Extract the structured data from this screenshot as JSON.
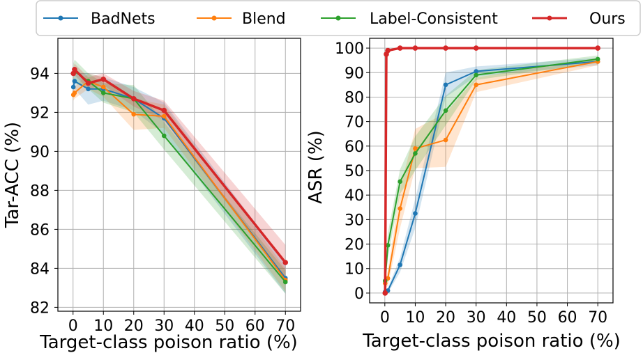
{
  "legend": [
    {
      "name": "BadNets",
      "color": "#1f77b4"
    },
    {
      "name": "Blend",
      "color": "#ff7f0e"
    },
    {
      "name": "Label-Consistent",
      "color": "#2ca02c"
    },
    {
      "name": "Ours",
      "color": "#d62728"
    }
  ],
  "chart_data": [
    {
      "type": "line",
      "xlabel": "Target-class poison ratio (%)",
      "ylabel": "Tar-ACC (%)",
      "xlim": [
        -5,
        75
      ],
      "ylim": [
        81.8,
        95.8
      ],
      "xticks": [
        0,
        10,
        20,
        30,
        40,
        50,
        60,
        70
      ],
      "xtick_positions": [
        0,
        10,
        20,
        30,
        40,
        50,
        60,
        70
      ],
      "yticks": [
        82,
        84,
        86,
        88,
        90,
        92,
        94
      ],
      "grid": true,
      "legend_position": "top",
      "series": [
        {
          "name": "BadNets",
          "color": "#1f77b4",
          "x": [
            0.1,
            0.5,
            5,
            10,
            20,
            30,
            70
          ],
          "y": [
            93.3,
            93.6,
            93.2,
            93.2,
            92.7,
            91.7,
            83.5
          ],
          "band": [
            0.4,
            0.4,
            0.8,
            0.6,
            0.6,
            0.8,
            0.8
          ]
        },
        {
          "name": "Blend",
          "color": "#ff7f0e",
          "x": [
            0.1,
            0.5,
            5,
            10,
            20,
            30,
            70
          ],
          "y": [
            92.9,
            93.0,
            93.6,
            93.3,
            91.9,
            91.8,
            83.4
          ],
          "band": [
            0.3,
            0.3,
            0.4,
            0.5,
            0.8,
            0.6,
            0.6
          ]
        },
        {
          "name": "Label-Consistent",
          "color": "#2ca02c",
          "x": [
            0.1,
            0.5,
            5,
            10,
            20,
            30,
            70
          ],
          "y": [
            94.0,
            94.1,
            93.6,
            93.0,
            92.7,
            90.8,
            83.3
          ],
          "band": [
            0.5,
            0.6,
            0.4,
            0.5,
            0.7,
            0.7,
            0.6
          ]
        },
        {
          "name": "Ours",
          "color": "#d62728",
          "x": [
            0.1,
            0.5,
            5,
            10,
            20,
            30,
            70
          ],
          "y": [
            94.0,
            94.2,
            93.5,
            93.7,
            92.7,
            92.1,
            84.3
          ],
          "band": [
            0.3,
            0.3,
            0.3,
            0.3,
            0.4,
            0.5,
            0.9
          ]
        }
      ]
    },
    {
      "type": "line",
      "xlabel": "Target-class poison ratio (%)",
      "ylabel": "ASR (%)",
      "xlim": [
        -5,
        75
      ],
      "ylim": [
        -4,
        104
      ],
      "xticks": [
        0,
        10,
        20,
        30,
        40,
        50,
        60,
        70
      ],
      "xtick_positions": [
        0,
        10,
        20,
        30,
        40,
        50,
        60,
        70
      ],
      "yticks": [
        0,
        10,
        20,
        30,
        40,
        50,
        60,
        70,
        80,
        90,
        100
      ],
      "grid": true,
      "series": [
        {
          "name": "BadNets",
          "color": "#1f77b4",
          "x": [
            0.1,
            1,
            5,
            10,
            20,
            30,
            70
          ],
          "y": [
            0.5,
            1,
            11.5,
            32.5,
            85,
            90.5,
            94.5
          ],
          "band": [
            0.5,
            1,
            3,
            6,
            5,
            2,
            1.5
          ]
        },
        {
          "name": "Blend",
          "color": "#ff7f0e",
          "x": [
            0.1,
            1,
            5,
            10,
            20,
            30,
            70
          ],
          "y": [
            4,
            6,
            34.5,
            59,
            62.5,
            85,
            94.5
          ],
          "band": [
            2,
            3,
            8,
            8,
            11,
            3,
            1.5
          ]
        },
        {
          "name": "Label-Consistent",
          "color": "#2ca02c",
          "x": [
            0.1,
            1,
            5,
            10,
            20,
            30,
            70
          ],
          "y": [
            5,
            19.5,
            45.5,
            57,
            74.5,
            89,
            95.5
          ],
          "band": [
            3,
            5,
            5,
            7,
            6,
            2,
            1.5
          ]
        },
        {
          "name": "Ours",
          "color": "#d62728",
          "x": [
            0.1,
            0.5,
            1,
            5,
            10,
            20,
            30,
            70
          ],
          "y": [
            0,
            97.5,
            99,
            100,
            100,
            100,
            100,
            100
          ],
          "band": [
            0,
            0,
            0,
            0,
            0,
            0,
            0,
            0
          ]
        }
      ]
    }
  ]
}
